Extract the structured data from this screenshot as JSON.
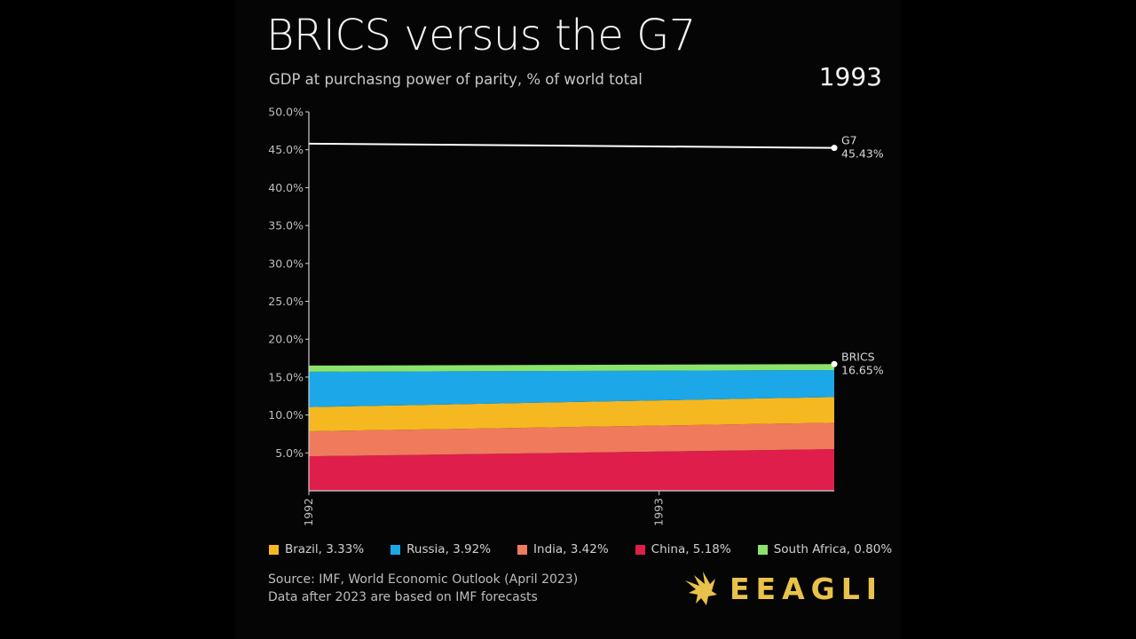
{
  "header": {
    "title": "BRICS versus the G7",
    "subtitle": "GDP at purchasng power of parity, % of world total",
    "year": "1993"
  },
  "labels": {
    "g7_name": "G7",
    "g7_value": "45.43%",
    "brics_name": "BRICS",
    "brics_value": "16.65%"
  },
  "legend": [
    {
      "label": "Brazil, 3.33%",
      "color": "#f5b820"
    },
    {
      "label": "Russia, 3.92%",
      "color": "#1ba7e8"
    },
    {
      "label": "India, 3.42%",
      "color": "#ef7a5c"
    },
    {
      "label": "China, 5.18%",
      "color": "#df1e4b"
    },
    {
      "label": "South Africa, 0.80%",
      "color": "#8be36b"
    }
  ],
  "source": {
    "line1": "Source: IMF, World Economic Outlook (April 2023)",
    "line2": "Data after 2023 are based on IMF forecasts"
  },
  "logo": {
    "text": "EEAGLI",
    "color": "#e9c24c",
    "icon": "eagle-icon"
  },
  "chart_data": {
    "type": "area",
    "stacked": true,
    "x": [
      1992,
      1993
    ],
    "xticks": [
      "1992",
      "1993"
    ],
    "ylim": [
      0,
      50
    ],
    "yticks": [
      "5.0%",
      "10.0%",
      "15.0%",
      "20.0%",
      "25.0%",
      "30.0%",
      "35.0%",
      "40.0%",
      "45.0%",
      "50.0%"
    ],
    "x_end": 1993.5,
    "series": [
      {
        "name": "China",
        "color": "#df1e4b",
        "values": [
          4.55,
          5.18
        ]
      },
      {
        "name": "India",
        "color": "#ef7a5c",
        "values": [
          3.3,
          3.42
        ]
      },
      {
        "name": "Brazil",
        "color": "#f5b820",
        "values": [
          3.2,
          3.33
        ]
      },
      {
        "name": "Russia",
        "color": "#1ba7e8",
        "values": [
          4.65,
          3.92
        ]
      },
      {
        "name": "South Africa",
        "color": "#8be36b",
        "values": [
          0.82,
          0.8
        ]
      }
    ],
    "lines": [
      {
        "name": "G7",
        "color": "#ffffff",
        "values": [
          45.8,
          45.43
        ]
      }
    ]
  }
}
